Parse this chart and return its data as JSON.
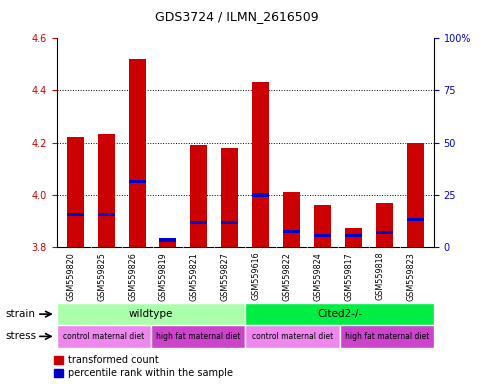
{
  "title": "GDS3724 / ILMN_2616509",
  "samples": [
    "GSM559820",
    "GSM559825",
    "GSM559826",
    "GSM559819",
    "GSM559821",
    "GSM559827",
    "GSM559616",
    "GSM559822",
    "GSM559824",
    "GSM559817",
    "GSM559818",
    "GSM559823"
  ],
  "red_values": [
    4.22,
    4.235,
    4.52,
    3.82,
    4.19,
    4.18,
    4.43,
    4.01,
    3.96,
    3.875,
    3.97,
    4.2
  ],
  "blue_values": [
    3.925,
    3.925,
    4.05,
    3.828,
    3.895,
    3.895,
    4.0,
    3.86,
    3.845,
    3.845,
    3.855,
    3.905
  ],
  "ymin": 3.8,
  "ymax": 4.6,
  "yticks": [
    3.8,
    4.0,
    4.2,
    4.4,
    4.6
  ],
  "right_yticks": [
    0,
    25,
    50,
    75,
    100
  ],
  "bar_color": "#cc0000",
  "blue_color": "#0000cc",
  "bar_width": 0.55,
  "grid_color": "black",
  "tick_color_left": "#cc0000",
  "tick_color_right": "#0000cc",
  "label_bg_color": "#c8c8c8",
  "strain_light_green": "#aaffaa",
  "strain_dark_green": "#00ee44",
  "stress_light_purple": "#ee88ee",
  "stress_dark_purple": "#cc44cc"
}
